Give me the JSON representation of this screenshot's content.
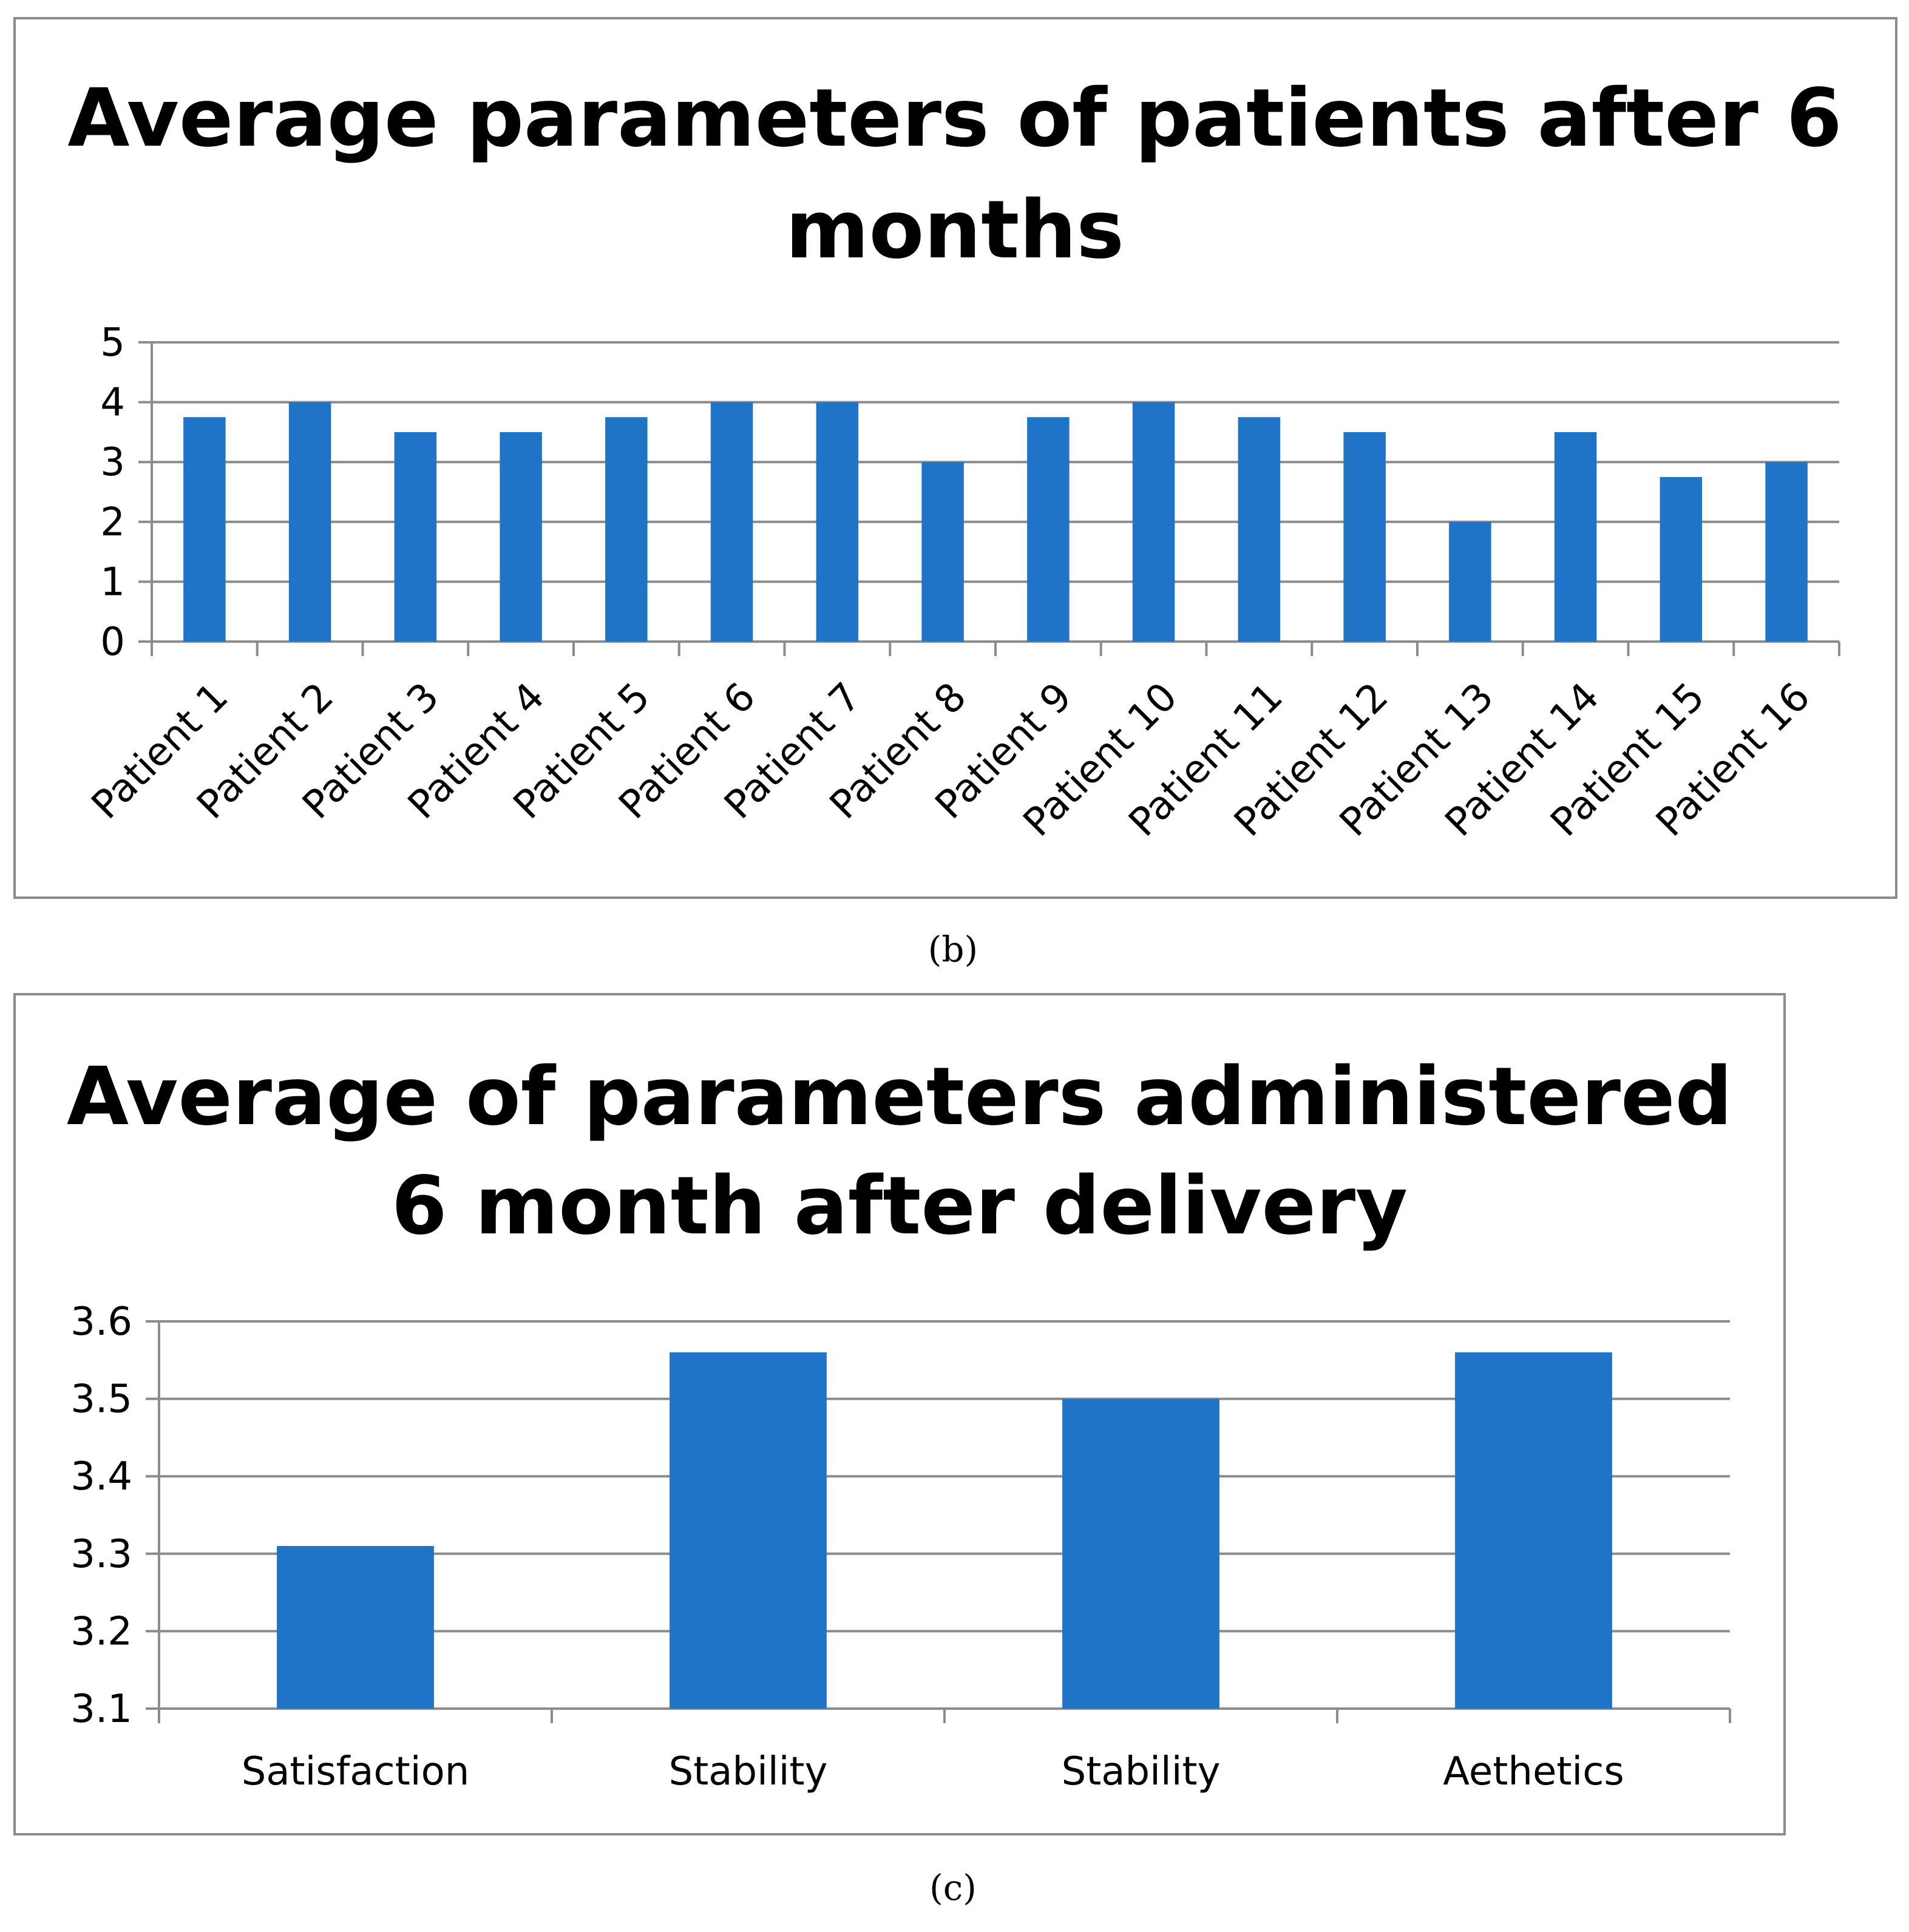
{
  "chart_data": [
    {
      "type": "bar",
      "title_lines": [
        "Average parameters of patients after 6",
        "months"
      ],
      "categories": [
        "Patient  1",
        "Patient 2",
        "Patient 3",
        "Patient 4",
        "Patient 5",
        "Patient 6",
        "Patient 7",
        "Patient 8",
        "Patient 9",
        "Patient 10",
        "Patient 11",
        "Patient 12",
        "Patient 13",
        "Patient 14",
        "Patient 15",
        "Patient 16"
      ],
      "values": [
        3.75,
        4,
        3.5,
        3.5,
        3.75,
        4,
        4,
        3,
        3.75,
        4,
        3.75,
        3.5,
        2,
        3.5,
        2.75,
        3
      ],
      "yticks": [
        "0",
        "1",
        "2",
        "3",
        "4",
        "5"
      ],
      "ylim": [
        0,
        5
      ],
      "grid": true,
      "legend": "none",
      "xlabel": "",
      "ylabel": "",
      "caption": "(b)"
    },
    {
      "type": "bar",
      "title_lines": [
        "Average of parameters administered",
        "6 month after delivery"
      ],
      "categories": [
        "Satisfaction",
        "Stability",
        "Stability",
        "Aethetics"
      ],
      "values": [
        3.31,
        3.56,
        3.5,
        3.56
      ],
      "yticks": [
        "3.1",
        "3.2",
        "3.3",
        "3.4",
        "3.5",
        "3.6"
      ],
      "ylim": [
        3.1,
        3.6
      ],
      "grid": true,
      "legend": "none",
      "xlabel": "",
      "ylabel": "",
      "caption": "(c)"
    }
  ],
  "colors": {
    "bar": "#1f74c7",
    "grid": "#8c8c8c",
    "frame": "#8c8c8c"
  }
}
